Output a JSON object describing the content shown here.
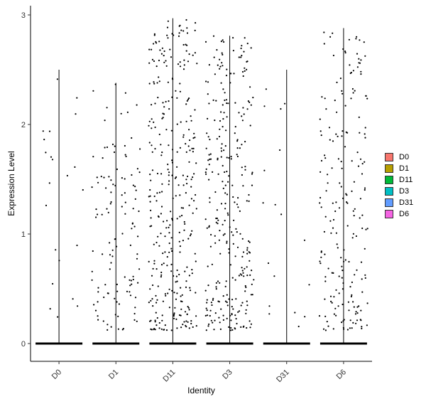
{
  "chart_data": {
    "type": "violin",
    "categories": [
      "D0",
      "D1",
      "D11",
      "D3",
      "D31",
      "D6"
    ],
    "colors": [
      "#F8766D",
      "#B79F00",
      "#00BA38",
      "#00BFC4",
      "#619CFF",
      "#F564E3"
    ],
    "xlabel": "Identity",
    "ylabel": "Expression Level",
    "ylim": [
      -0.15,
      3.05
    ],
    "yticks": [
      0,
      1,
      2,
      3
    ],
    "max_values": [
      2.5,
      2.38,
      2.97,
      2.81,
      2.5,
      2.88
    ],
    "nonzero_point_counts": [
      22,
      120,
      330,
      300,
      18,
      200
    ],
    "legend": {
      "position": "right",
      "items": [
        "D0",
        "D1",
        "D11",
        "D3",
        "D31",
        "D6"
      ]
    }
  }
}
